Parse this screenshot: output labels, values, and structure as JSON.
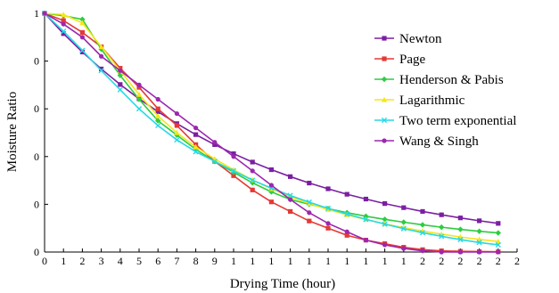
{
  "chart_data": {
    "type": "line",
    "xlabel": "Drying Time (hour)",
    "ylabel": "Moisture Ratio",
    "x_tick_labels": [
      "0",
      "1",
      "2",
      "3",
      "4",
      "5",
      "6",
      "7",
      "8",
      "9",
      "1",
      "1",
      "1",
      "1",
      "1",
      "1",
      "1",
      "1",
      "1",
      "1",
      "2",
      "2",
      "2",
      "2",
      "2",
      "2"
    ],
    "y_tick_labels": [
      "1",
      "0",
      "0",
      "0",
      "0",
      "0"
    ],
    "xlim": [
      0,
      25
    ],
    "ylim": [
      0,
      1
    ],
    "grid": false,
    "legend_position": "right",
    "x": [
      0,
      1,
      2,
      3,
      4,
      5,
      6,
      7,
      8,
      9,
      10,
      11,
      12,
      13,
      14,
      15,
      16,
      17,
      18,
      19,
      20,
      21,
      22,
      23,
      24
    ],
    "series": [
      {
        "name": "Newton",
        "color": "#7B1FA2",
        "marker": "square",
        "values": [
          1.0,
          0.915,
          0.838,
          0.767,
          0.702,
          0.642,
          0.588,
          0.538,
          0.492,
          0.45,
          0.412,
          0.377,
          0.345,
          0.316,
          0.289,
          0.265,
          0.242,
          0.222,
          0.203,
          0.186,
          0.17,
          0.156,
          0.143,
          0.131,
          0.12
        ]
      },
      {
        "name": "Page",
        "color": "#E53935",
        "marker": "square",
        "values": [
          1.0,
          0.97,
          0.92,
          0.86,
          0.77,
          0.69,
          0.6,
          0.53,
          0.45,
          0.38,
          0.32,
          0.26,
          0.21,
          0.17,
          0.13,
          0.1,
          0.07,
          0.05,
          0.035,
          0.02,
          0.01,
          0.005,
          0.003,
          0.002,
          0.001
        ]
      },
      {
        "name": "Henderson & Pabis",
        "color": "#2ECC40",
        "marker": "diamond",
        "values": [
          1.0,
          0.99,
          0.975,
          0.85,
          0.74,
          0.64,
          0.55,
          0.49,
          0.43,
          0.38,
          0.334,
          0.29,
          0.252,
          0.22,
          0.2,
          0.182,
          0.165,
          0.15,
          0.137,
          0.125,
          0.114,
          0.104,
          0.095,
          0.087,
          0.08
        ]
      },
      {
        "name": "Lagarithmic",
        "color": "#F5E61A",
        "marker": "triangle",
        "values": [
          1.0,
          0.995,
          0.96,
          0.86,
          0.76,
          0.66,
          0.57,
          0.5,
          0.44,
          0.39,
          0.345,
          0.302,
          0.265,
          0.232,
          0.203,
          0.178,
          0.156,
          0.136,
          0.118,
          0.102,
          0.088,
          0.075,
          0.063,
          0.053,
          0.044
        ]
      },
      {
        "name": "Two term exponential",
        "color": "#26D9E6",
        "marker": "x",
        "values": [
          1.0,
          0.925,
          0.845,
          0.76,
          0.68,
          0.6,
          0.53,
          0.47,
          0.42,
          0.38,
          0.34,
          0.301,
          0.268,
          0.237,
          0.209,
          0.183,
          0.159,
          0.137,
          0.117,
          0.098,
          0.081,
          0.066,
          0.052,
          0.04,
          0.03
        ]
      },
      {
        "name": "Wang & Singh",
        "color": "#9C27B0",
        "marker": "circle",
        "values": [
          1.0,
          0.955,
          0.9,
          0.82,
          0.76,
          0.7,
          0.64,
          0.58,
          0.52,
          0.46,
          0.4,
          0.34,
          0.28,
          0.22,
          0.165,
          0.12,
          0.085,
          0.05,
          0.03,
          0.015,
          0.005,
          0.0,
          0.0,
          0.0,
          0.0
        ]
      }
    ]
  }
}
